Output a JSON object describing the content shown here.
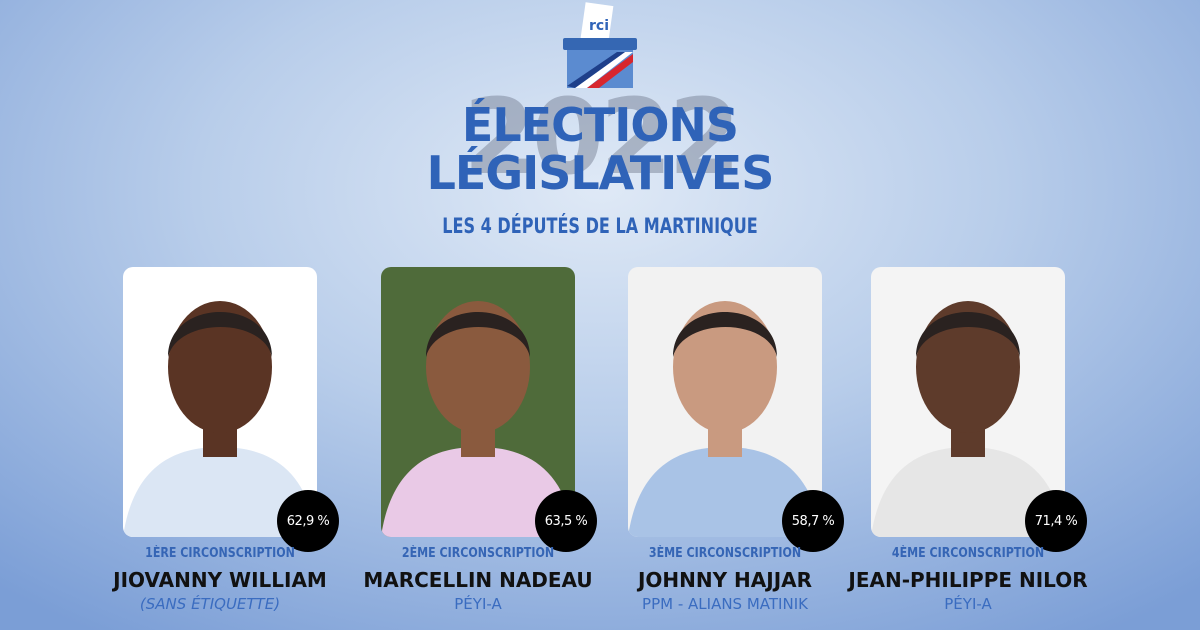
{
  "header": {
    "logo_text": "rci",
    "year": "2022",
    "title_line1": "ÉLECTIONS",
    "title_line2": "LÉGISLATIVES",
    "subtitle": "LES 4 DÉPUTÉS DE LA MARTINIQUE"
  },
  "deputies": [
    {
      "circonscription": "1ÈRE CIRCONSCRIPTION",
      "name": "JIOVANNY WILLIAM",
      "party": "(SANS ÉTIQUETTE)",
      "score": "62,9 %",
      "photo_bg": "#ffffff",
      "skin": "#5a3424",
      "shirt": "#dbe6f4"
    },
    {
      "circonscription": "2ÈME CIRCONSCRIPTION",
      "name": "MARCELLIN NADEAU",
      "party": "PÉYI-A",
      "score": "63,5 %",
      "photo_bg": "#4f6b3a",
      "skin": "#8a5a3e",
      "shirt": "#e9c9e6"
    },
    {
      "circonscription": "3ÈME CIRCONSCRIPTION",
      "name": "JOHNNY HAJJAR",
      "party": "PPM - ALIANS MATINIK",
      "score": "58,7 %",
      "photo_bg": "#f2f2f2",
      "skin": "#c99a80",
      "shirt": "#a9c3e6"
    },
    {
      "circonscription": "4ÈME CIRCONSCRIPTION",
      "name": "JEAN-PHILIPPE NILOR",
      "party": "PÉYI-A",
      "score": "71,4 %",
      "photo_bg": "#f4f4f4",
      "skin": "#5e3b2b",
      "shirt": "#e6e6e6"
    }
  ],
  "colors": {
    "accent": "#2f63b8",
    "badge": "#000000"
  }
}
